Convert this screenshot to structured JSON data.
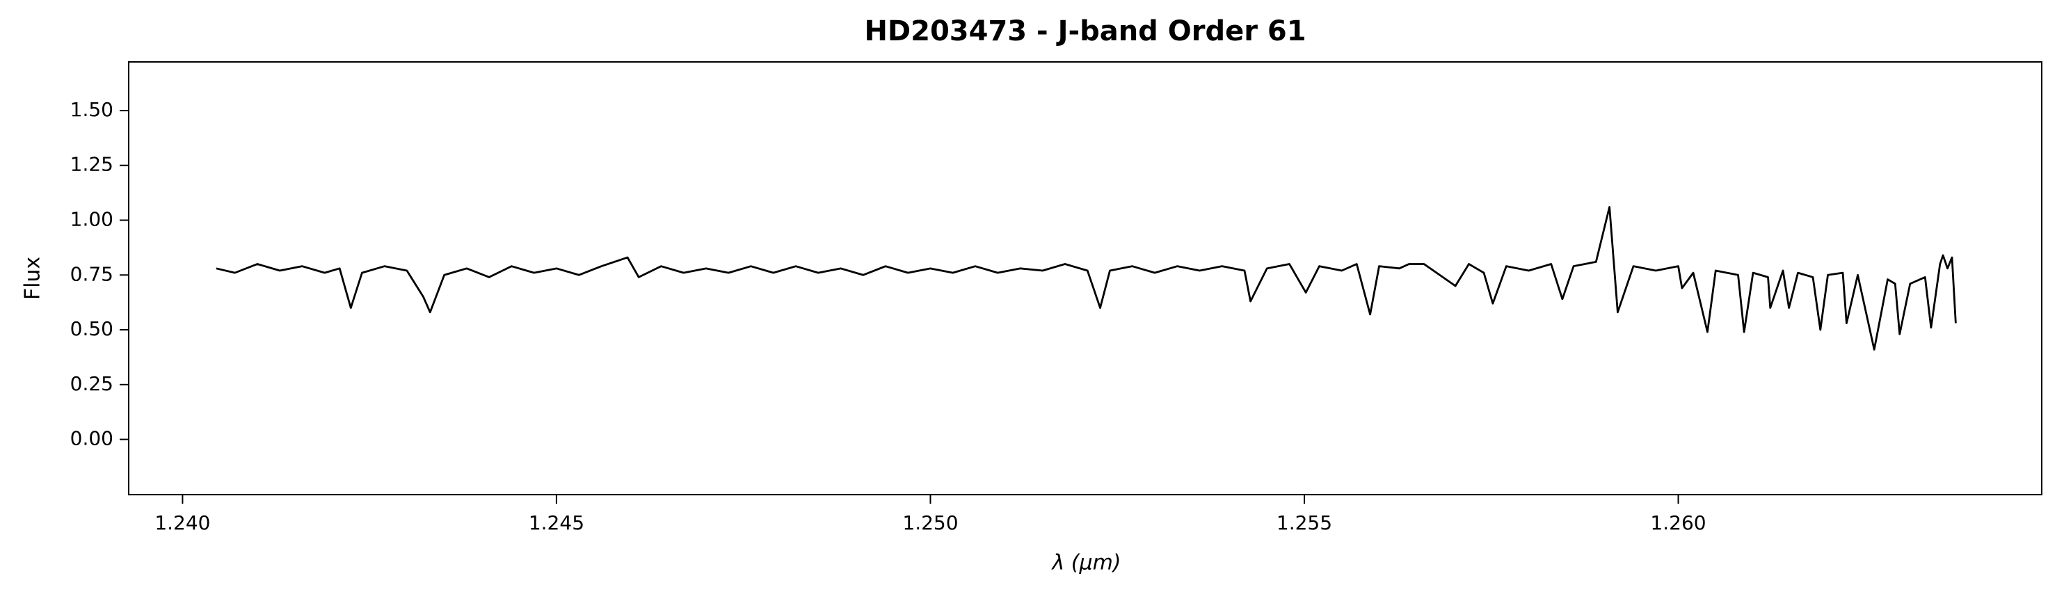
{
  "chart_data": {
    "type": "line",
    "title": "HD203473 - J-band Order 61",
    "xlabel": "λ (μm)",
    "ylabel": "Flux",
    "xlim": [
      1.23928,
      1.26486
    ],
    "ylim": [
      -0.252,
      1.722
    ],
    "xticks": [
      {
        "value": 1.24,
        "label": "1.240"
      },
      {
        "value": 1.245,
        "label": "1.245"
      },
      {
        "value": 1.25,
        "label": "1.250"
      },
      {
        "value": 1.255,
        "label": "1.255"
      },
      {
        "value": 1.26,
        "label": "1.260"
      }
    ],
    "yticks": [
      {
        "value": 0,
        "label": "0.00"
      },
      {
        "value": 0.25,
        "label": "0.25"
      },
      {
        "value": 0.5,
        "label": "0.50"
      },
      {
        "value": 0.75,
        "label": "0.75"
      },
      {
        "value": 1,
        "label": "1.00"
      },
      {
        "value": 1.25,
        "label": "1.25"
      },
      {
        "value": 1.5,
        "label": "1.50"
      }
    ],
    "grid": false,
    "series": [
      {
        "color": "#000000",
        "x": [
          1.24045,
          1.2407,
          1.241,
          1.2413,
          1.2416,
          1.2419,
          1.2421,
          1.24225,
          1.2424,
          1.2427,
          1.243,
          1.24322,
          1.24331,
          1.2435,
          1.2438,
          1.2441,
          1.2444,
          1.2447,
          1.245,
          1.2453,
          1.2456,
          1.24595,
          1.2461,
          1.2464,
          1.2467,
          1.247,
          1.2473,
          1.2476,
          1.2479,
          1.2482,
          1.2485,
          1.2488,
          1.2491,
          1.2494,
          1.2497,
          1.25,
          1.2503,
          1.2506,
          1.2509,
          1.2512,
          1.2515,
          1.2518,
          1.2521,
          1.25227,
          1.2524,
          1.2527,
          1.253,
          1.2533,
          1.2536,
          1.2539,
          1.2542,
          1.25428,
          1.2545,
          1.2548,
          1.25502,
          1.2552,
          1.2555,
          1.2557,
          1.25588,
          1.256,
          1.25627,
          1.2564,
          1.2566,
          1.25702,
          1.2572,
          1.2574,
          1.25752,
          1.2577,
          1.258,
          1.2583,
          1.25845,
          1.2586,
          1.2589,
          1.25908,
          1.25919,
          1.2594,
          1.2597,
          1.26,
          1.26005,
          1.2602,
          1.26039,
          1.2605,
          1.2608,
          1.26088,
          1.261,
          1.2612,
          1.26123,
          1.2614,
          1.26148,
          1.2616,
          1.2618,
          1.2619,
          1.262,
          1.2622,
          1.26225,
          1.2624,
          1.26262,
          1.2628,
          1.2629,
          1.26296,
          1.2631,
          1.2633,
          1.26338,
          1.2635,
          1.26354,
          1.2636,
          1.26366,
          1.26371
        ],
        "values": [
          0.78,
          0.76,
          0.8,
          0.77,
          0.79,
          0.76,
          0.78,
          0.6,
          0.76,
          0.79,
          0.77,
          0.65,
          0.58,
          0.75,
          0.78,
          0.74,
          0.79,
          0.76,
          0.78,
          0.75,
          0.79,
          0.83,
          0.74,
          0.79,
          0.76,
          0.78,
          0.76,
          0.79,
          0.76,
          0.79,
          0.76,
          0.78,
          0.75,
          0.79,
          0.76,
          0.78,
          0.76,
          0.79,
          0.76,
          0.78,
          0.77,
          0.8,
          0.77,
          0.6,
          0.77,
          0.79,
          0.76,
          0.79,
          0.77,
          0.79,
          0.77,
          0.63,
          0.78,
          0.8,
          0.67,
          0.79,
          0.77,
          0.8,
          0.57,
          0.79,
          0.78,
          0.8,
          0.8,
          0.7,
          0.8,
          0.76,
          0.62,
          0.79,
          0.77,
          0.8,
          0.64,
          0.79,
          0.81,
          1.06,
          0.58,
          0.79,
          0.77,
          0.79,
          0.69,
          0.76,
          0.49,
          0.77,
          0.75,
          0.49,
          0.76,
          0.74,
          0.6,
          0.77,
          0.6,
          0.76,
          0.74,
          0.5,
          0.75,
          0.76,
          0.53,
          0.75,
          0.41,
          0.73,
          0.71,
          0.48,
          0.71,
          0.74,
          0.51,
          0.8,
          0.84,
          0.78,
          0.83,
          0.53
        ]
      }
    ]
  }
}
